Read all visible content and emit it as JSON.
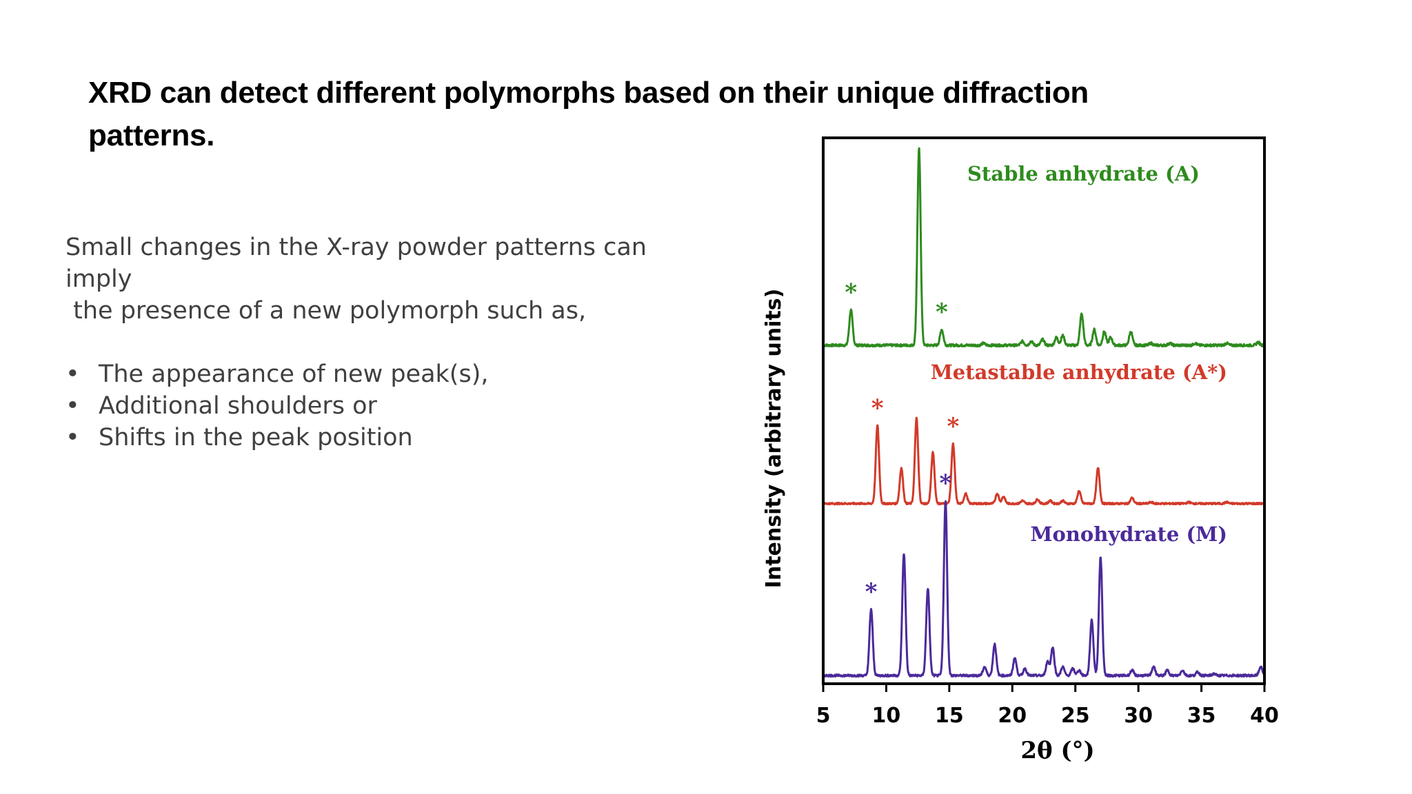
{
  "slide": {
    "title": "XRD can detect different polymorphs based on their unique diffraction patterns.",
    "body_lines": [
      "Small changes in the X-ray powder patterns can imply",
      " the presence of a new polymorph such as,"
    ],
    "bullet_glyph": "•",
    "bullets": [
      "The appearance of new peak(s),",
      "Additional shoulders or",
      "Shifts in the peak position"
    ]
  },
  "chart_data": {
    "type": "line",
    "xlabel": "2θ (°)",
    "ylabel": "Intensity (arbitrary units)",
    "xlim": [
      5,
      40
    ],
    "x_ticks": [
      "5",
      "10",
      "15",
      "20",
      "25",
      "30",
      "35",
      "40"
    ],
    "grid": false,
    "legend": "inline labels at upper-right of each trace",
    "marker_glyph": "*",
    "series": [
      {
        "name": "Stable anhydrate (A)",
        "color": "#2e8b1e",
        "baseline": 0.62,
        "scale": 0.36,
        "peaks": [
          {
            "x": 7.2,
            "h": 0.18
          },
          {
            "x": 12.6,
            "h": 1.0
          },
          {
            "x": 14.4,
            "h": 0.08
          },
          {
            "x": 17.7,
            "h": 0.01
          },
          {
            "x": 20.8,
            "h": 0.02
          },
          {
            "x": 21.5,
            "h": 0.02
          },
          {
            "x": 22.4,
            "h": 0.03
          },
          {
            "x": 23.5,
            "h": 0.04
          },
          {
            "x": 24.0,
            "h": 0.05
          },
          {
            "x": 25.5,
            "h": 0.16
          },
          {
            "x": 26.5,
            "h": 0.08
          },
          {
            "x": 27.3,
            "h": 0.07
          },
          {
            "x": 27.8,
            "h": 0.04
          },
          {
            "x": 29.4,
            "h": 0.07
          },
          {
            "x": 31.0,
            "h": 0.01
          },
          {
            "x": 32.5,
            "h": 0.01
          },
          {
            "x": 34.5,
            "h": 0.01
          },
          {
            "x": 37.0,
            "h": 0.01
          },
          {
            "x": 39.5,
            "h": 0.015
          }
        ],
        "markers": [
          7.2,
          14.4
        ]
      },
      {
        "name": "Metastable anhydrate (A*)",
        "color": "#d23a2a",
        "baseline": 0.33,
        "scale": 0.26,
        "peaks": [
          {
            "x": 9.3,
            "h": 0.55
          },
          {
            "x": 11.2,
            "h": 0.25
          },
          {
            "x": 12.4,
            "h": 0.6
          },
          {
            "x": 13.7,
            "h": 0.36
          },
          {
            "x": 15.3,
            "h": 0.42
          },
          {
            "x": 16.3,
            "h": 0.07
          },
          {
            "x": 18.8,
            "h": 0.07
          },
          {
            "x": 19.3,
            "h": 0.05
          },
          {
            "x": 20.8,
            "h": 0.02
          },
          {
            "x": 22.0,
            "h": 0.03
          },
          {
            "x": 23.0,
            "h": 0.02
          },
          {
            "x": 24.0,
            "h": 0.02
          },
          {
            "x": 25.3,
            "h": 0.09
          },
          {
            "x": 26.8,
            "h": 0.25
          },
          {
            "x": 29.5,
            "h": 0.04
          },
          {
            "x": 31.0,
            "h": 0.01
          },
          {
            "x": 34.0,
            "h": 0.01
          },
          {
            "x": 37.0,
            "h": 0.01
          }
        ],
        "markers": [
          9.3,
          15.3
        ]
      },
      {
        "name": "Monohydrate (M)",
        "color": "#4b2a9a",
        "baseline": 0.015,
        "scale": 0.32,
        "peaks": [
          {
            "x": 8.8,
            "h": 0.38
          },
          {
            "x": 11.4,
            "h": 0.7
          },
          {
            "x": 13.3,
            "h": 0.5
          },
          {
            "x": 14.7,
            "h": 1.0
          },
          {
            "x": 17.8,
            "h": 0.05
          },
          {
            "x": 18.6,
            "h": 0.18
          },
          {
            "x": 20.2,
            "h": 0.1
          },
          {
            "x": 21.0,
            "h": 0.04
          },
          {
            "x": 22.8,
            "h": 0.08
          },
          {
            "x": 23.2,
            "h": 0.16
          },
          {
            "x": 24.0,
            "h": 0.05
          },
          {
            "x": 24.8,
            "h": 0.04
          },
          {
            "x": 25.3,
            "h": 0.03
          },
          {
            "x": 26.3,
            "h": 0.32
          },
          {
            "x": 27.0,
            "h": 0.68
          },
          {
            "x": 29.5,
            "h": 0.03
          },
          {
            "x": 31.2,
            "h": 0.05
          },
          {
            "x": 32.3,
            "h": 0.03
          },
          {
            "x": 33.5,
            "h": 0.03
          },
          {
            "x": 34.7,
            "h": 0.02
          },
          {
            "x": 36.0,
            "h": 0.01
          },
          {
            "x": 39.7,
            "h": 0.05
          }
        ],
        "markers": [
          8.8,
          14.7
        ]
      }
    ]
  }
}
